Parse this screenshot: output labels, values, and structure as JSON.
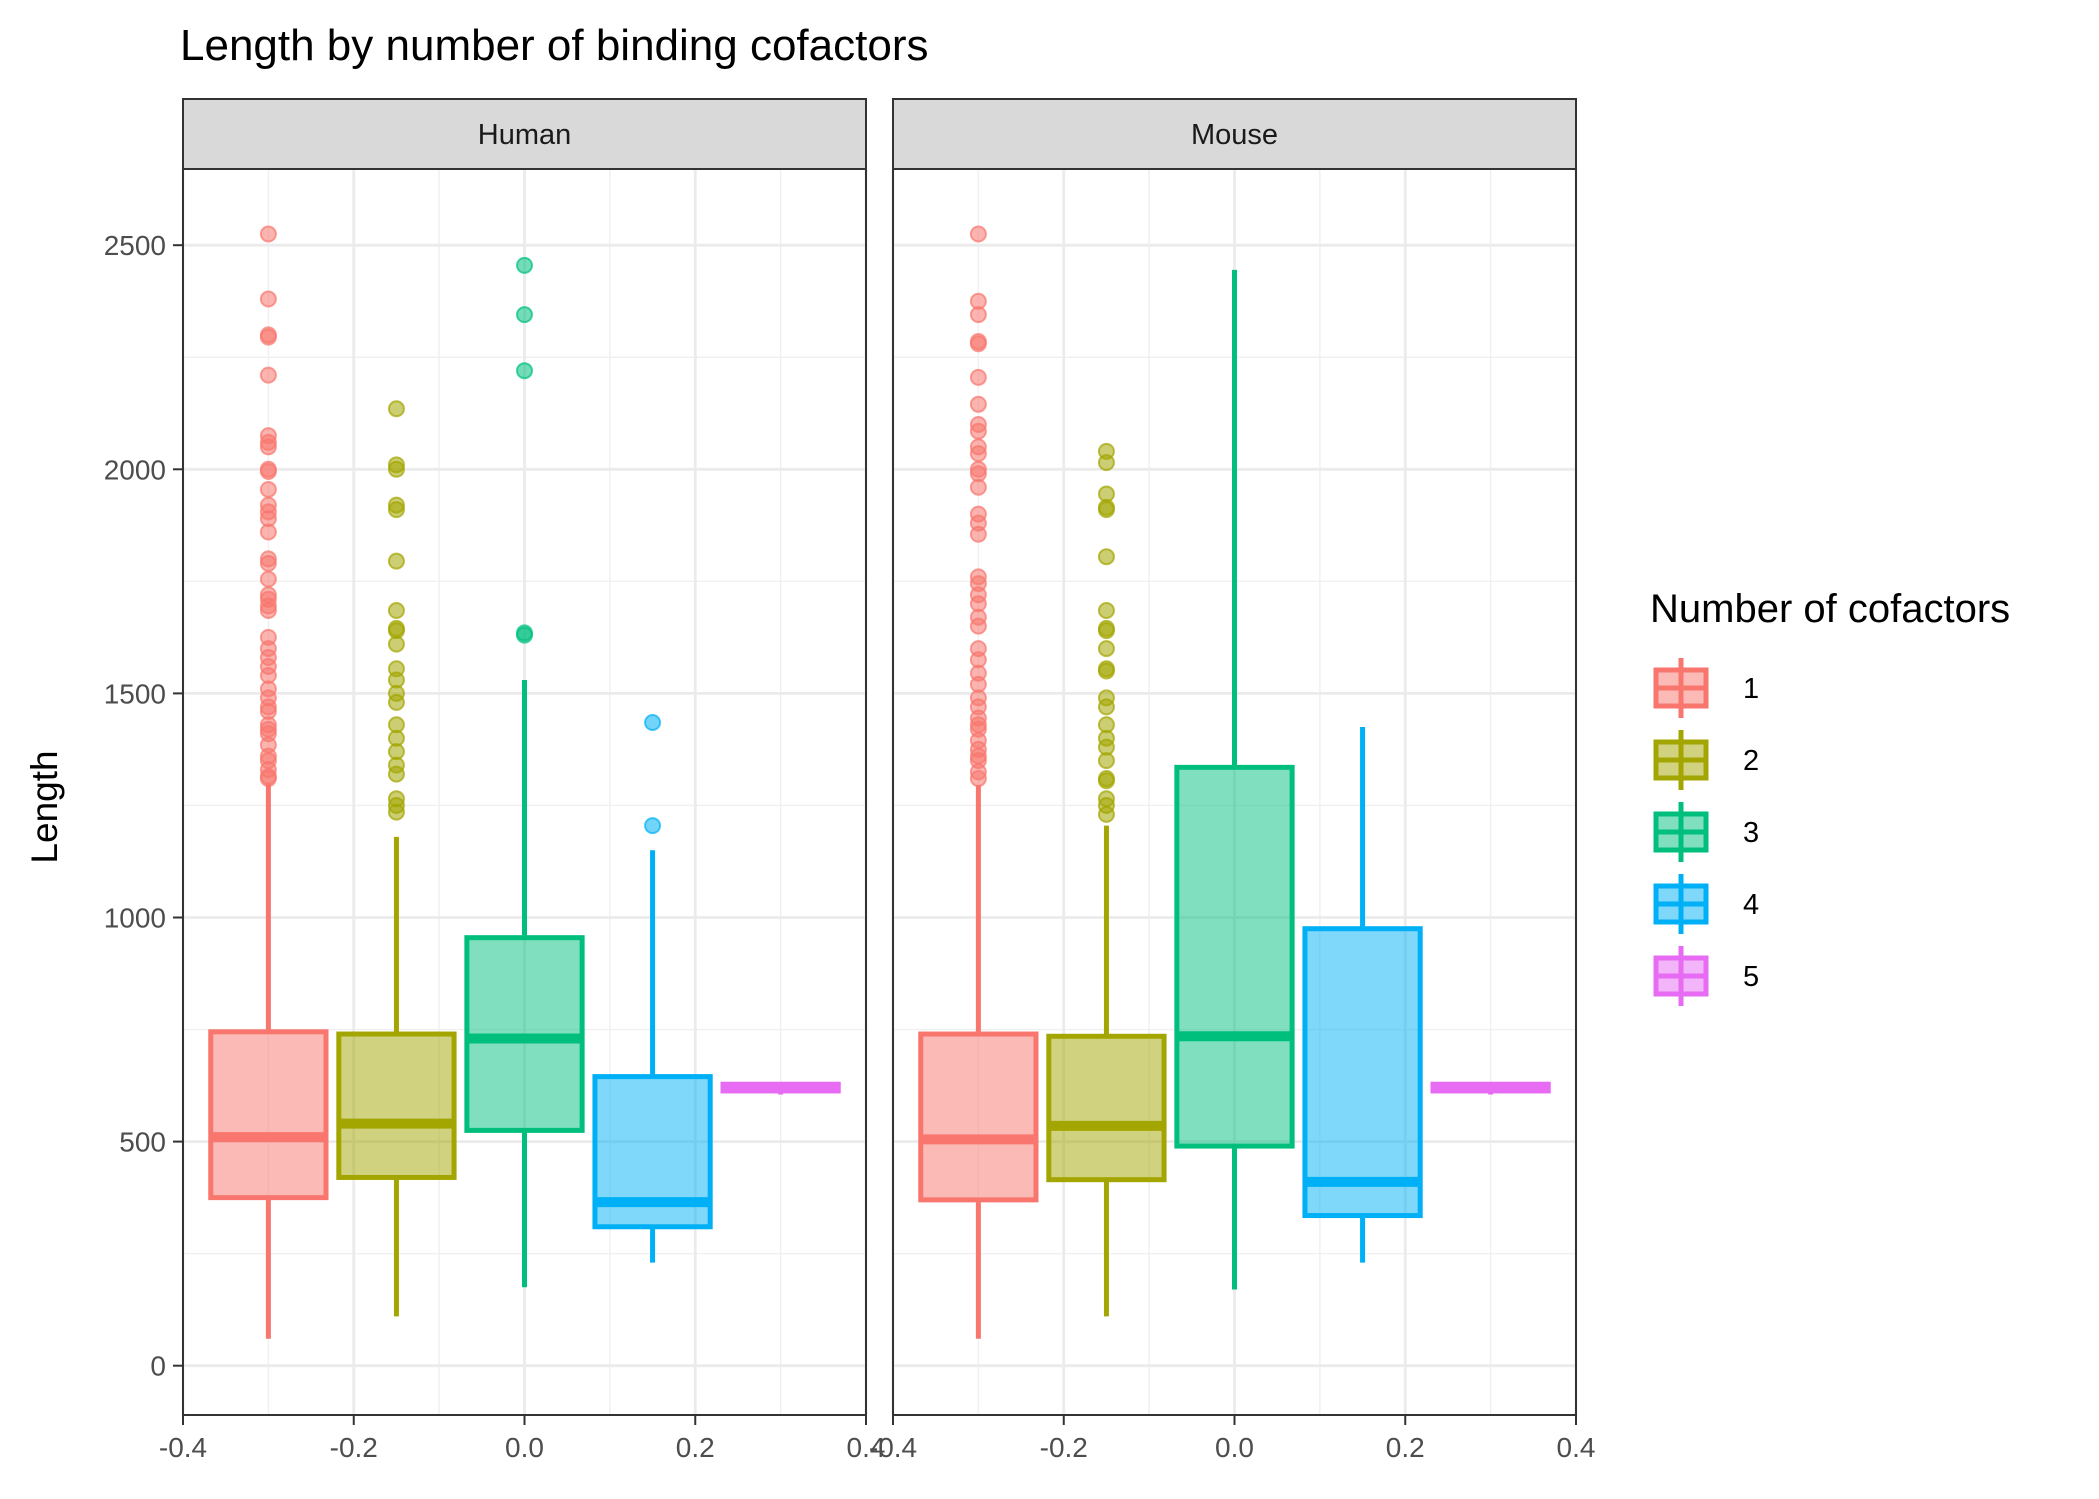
{
  "chart_data": {
    "type": "boxplot",
    "title": "Length by number of binding cofactors",
    "ylabel": "Length",
    "xlabel": "",
    "xlim": [
      -0.4,
      0.4
    ],
    "ylim": [
      -110,
      2670
    ],
    "x_ticks": [
      -0.4,
      -0.2,
      0.0,
      0.2,
      0.4
    ],
    "x_tick_labels": [
      "-0.4",
      "-0.2",
      "0.0",
      "0.2",
      "0.4"
    ],
    "y_ticks": [
      0,
      500,
      1000,
      1500,
      2000,
      2500
    ],
    "y_tick_labels": [
      "0",
      "500",
      "1000",
      "1500",
      "2000",
      "2500"
    ],
    "grid": true,
    "legend": {
      "title": "Number of cofactors",
      "position": "right",
      "items": [
        {
          "label": "1",
          "color": "#F8766D"
        },
        {
          "label": "2",
          "color": "#A3A500"
        },
        {
          "label": "3",
          "color": "#00BF7D"
        },
        {
          "label": "4",
          "color": "#00B0F6"
        },
        {
          "label": "5",
          "color": "#E76BF3"
        }
      ]
    },
    "box_x_range": {
      "xmin": -0.3,
      "xmax": 0.3
    },
    "box_width": 0.135,
    "panels": [
      {
        "label": "Human",
        "boxes": [
          {
            "group": "1",
            "x": -0.3,
            "whisker_low": 60,
            "q1": 375,
            "median": 510,
            "q3": 745,
            "whisker_high": 1300,
            "outliers": [
              2525,
              2380,
              2300,
              2295,
              2210,
              2075,
              2060,
              2050,
              2000,
              1995,
              1955,
              1920,
              1905,
              1890,
              1860,
              1800,
              1790,
              1755,
              1720,
              1710,
              1695,
              1685,
              1625,
              1600,
              1580,
              1560,
              1540,
              1510,
              1490,
              1470,
              1460,
              1430,
              1420,
              1410,
              1385,
              1360,
              1350,
              1330,
              1315,
              1310
            ]
          },
          {
            "group": "2",
            "x": -0.15,
            "whisker_low": 110,
            "q1": 420,
            "median": 540,
            "q3": 740,
            "whisker_high": 1180,
            "outliers": [
              2135,
              2010,
              2000,
              1920,
              1910,
              1795,
              1685,
              1645,
              1640,
              1610,
              1555,
              1530,
              1500,
              1480,
              1430,
              1400,
              1370,
              1340,
              1320,
              1265,
              1250,
              1235
            ]
          },
          {
            "group": "3",
            "x": 0.0,
            "whisker_low": 175,
            "q1": 525,
            "median": 730,
            "q3": 955,
            "whisker_high": 1530,
            "outliers": [
              2455,
              2345,
              2220,
              1635,
              1630
            ]
          },
          {
            "group": "4",
            "x": 0.15,
            "whisker_low": 230,
            "q1": 310,
            "median": 365,
            "q3": 645,
            "whisker_high": 1150,
            "outliers": [
              1435,
              1205
            ]
          },
          {
            "group": "5",
            "x": 0.3,
            "whisker_low": 605,
            "q1": 613,
            "median": 620,
            "q3": 628,
            "whisker_high": 632,
            "outliers": []
          }
        ]
      },
      {
        "label": "Mouse",
        "boxes": [
          {
            "group": "1",
            "x": -0.3,
            "whisker_low": 60,
            "q1": 370,
            "median": 505,
            "q3": 740,
            "whisker_high": 1295,
            "outliers": [
              2525,
              2375,
              2345,
              2285,
              2280,
              2205,
              2145,
              2100,
              2085,
              2050,
              2035,
              2000,
              1990,
              1960,
              1900,
              1880,
              1855,
              1760,
              1745,
              1720,
              1700,
              1670,
              1650,
              1600,
              1575,
              1545,
              1520,
              1490,
              1470,
              1445,
              1430,
              1420,
              1395,
              1375,
              1360,
              1350,
              1325,
              1310
            ]
          },
          {
            "group": "2",
            "x": -0.15,
            "whisker_low": 110,
            "q1": 415,
            "median": 535,
            "q3": 735,
            "whisker_high": 1205,
            "outliers": [
              2040,
              2015,
              1945,
              1915,
              1910,
              1805,
              1685,
              1645,
              1640,
              1600,
              1555,
              1550,
              1490,
              1470,
              1430,
              1400,
              1380,
              1350,
              1310,
              1305,
              1265,
              1250,
              1230
            ]
          },
          {
            "group": "3",
            "x": 0.0,
            "whisker_low": 170,
            "q1": 490,
            "median": 735,
            "q3": 1335,
            "whisker_high": 2445,
            "outliers": []
          },
          {
            "group": "4",
            "x": 0.15,
            "whisker_low": 230,
            "q1": 335,
            "median": 410,
            "q3": 975,
            "whisker_high": 1425,
            "outliers": []
          },
          {
            "group": "5",
            "x": 0.3,
            "whisker_low": 605,
            "q1": 613,
            "median": 620,
            "q3": 628,
            "whisker_high": 632,
            "outliers": []
          }
        ]
      }
    ]
  }
}
